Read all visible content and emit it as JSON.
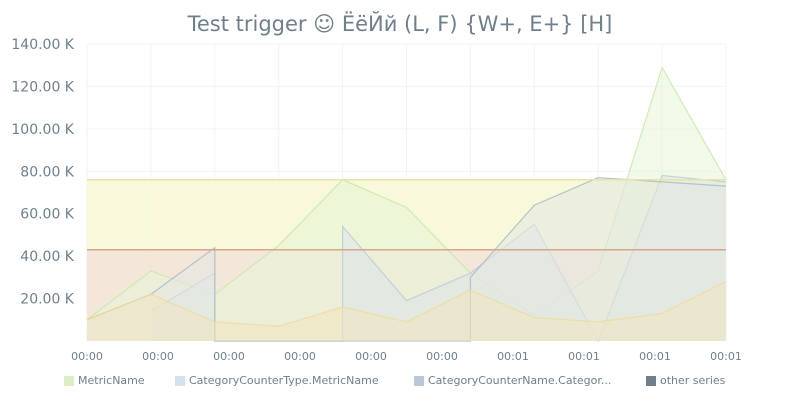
{
  "title": "Test trigger ☺ ЁёЙй (L, F) {W+, E+} [H]",
  "colors": {
    "text": "#6f808c",
    "grid": "#f2f3f4",
    "threshold_upper_fill": "#f6f8d6",
    "threshold_upper_line": "#e9e3a6",
    "threshold_lower_fill": "#f2e4d6",
    "threshold_lower_line": "#d6a58a"
  },
  "legend": [
    {
      "label": "MetricName",
      "color": "#dcefc4"
    },
    {
      "label": "CategoryCounterType.MetricName",
      "color": "#d4e0ec"
    },
    {
      "label": "CategoryCounterName.Categor...",
      "color": "#b9c7d8"
    },
    {
      "label": "other series",
      "color": "#6f808c"
    }
  ],
  "chart_data": {
    "type": "area",
    "title": "Test trigger ☺ ЁёЙй (L, F) {W+, E+} [H]",
    "xlabel": "",
    "ylabel": "",
    "ylim": [
      0,
      140000
    ],
    "yticks": [
      20000,
      40000,
      60000,
      80000,
      100000,
      120000,
      140000
    ],
    "ytick_labels": [
      "20.00 K",
      "40.00 K",
      "60.00 K",
      "80.00 K",
      "100.00 K",
      "120.00 K",
      "140.00 K"
    ],
    "x": [
      0,
      1,
      2,
      3,
      4,
      5,
      6,
      7,
      8,
      9,
      10
    ],
    "xlim": [
      0,
      10
    ],
    "xtick_positions": [
      0,
      1,
      2,
      3,
      4,
      5,
      6,
      7,
      8,
      9
    ],
    "xtick_labels": [
      "00:00",
      "00:00",
      "00:00",
      "00:00",
      "00:00",
      "00:00",
      "00:01",
      "00:01",
      "00:01",
      "00:01"
    ],
    "grid": true,
    "legend_position": "bottom",
    "thresholds": [
      {
        "value": 76000,
        "line": "#e9e3a6",
        "fill": "#f6f8d6"
      },
      {
        "value": 43000,
        "line": "#d6a58a",
        "fill": "#f2e4d6"
      }
    ],
    "series": [
      {
        "name": "MetricName",
        "color": "#c9e6a8",
        "fill": "#e6f4d6",
        "points": [
          [
            0,
            10000
          ],
          [
            1,
            33000
          ],
          [
            2,
            22000
          ],
          [
            3,
            45000
          ],
          [
            4,
            76000
          ],
          [
            5,
            63000
          ],
          [
            6,
            32000
          ],
          [
            7,
            12000
          ],
          [
            8,
            33000
          ],
          [
            9,
            129000
          ],
          [
            10,
            76000
          ]
        ]
      },
      {
        "name": "CategoryCounterType.MetricName",
        "color": "#b9c9d6",
        "fill": "#dde6ea",
        "points": [
          [
            1,
            14000
          ],
          [
            2,
            32000
          ],
          [
            2,
            0
          ],
          [
            4,
            0
          ],
          [
            4,
            54000
          ],
          [
            5,
            19000
          ],
          [
            6,
            32000
          ],
          [
            7,
            55000
          ],
          [
            8,
            0
          ],
          [
            9,
            78000
          ],
          [
            10,
            75000
          ]
        ]
      },
      {
        "name": "CategoryCounterName.Categor...",
        "color": "#a8b8c4",
        "fill": "#e3e7e1",
        "points": [
          [
            0,
            10000
          ],
          [
            1,
            22000
          ],
          [
            2,
            44000
          ],
          [
            2,
            0
          ],
          [
            6,
            0
          ],
          [
            6,
            30000
          ],
          [
            7,
            64000
          ],
          [
            8,
            77000
          ],
          [
            10,
            73000
          ]
        ]
      },
      {
        "name": "other series",
        "color": "#f0d99a",
        "fill": "#f3e6c0",
        "points": [
          [
            0,
            10000
          ],
          [
            1,
            22000
          ],
          [
            2,
            9000
          ],
          [
            3,
            7000
          ],
          [
            4,
            16000
          ],
          [
            5,
            9000
          ],
          [
            6,
            24000
          ],
          [
            7,
            11000
          ],
          [
            8,
            9000
          ],
          [
            9,
            13000
          ],
          [
            10,
            28000
          ]
        ]
      }
    ]
  }
}
